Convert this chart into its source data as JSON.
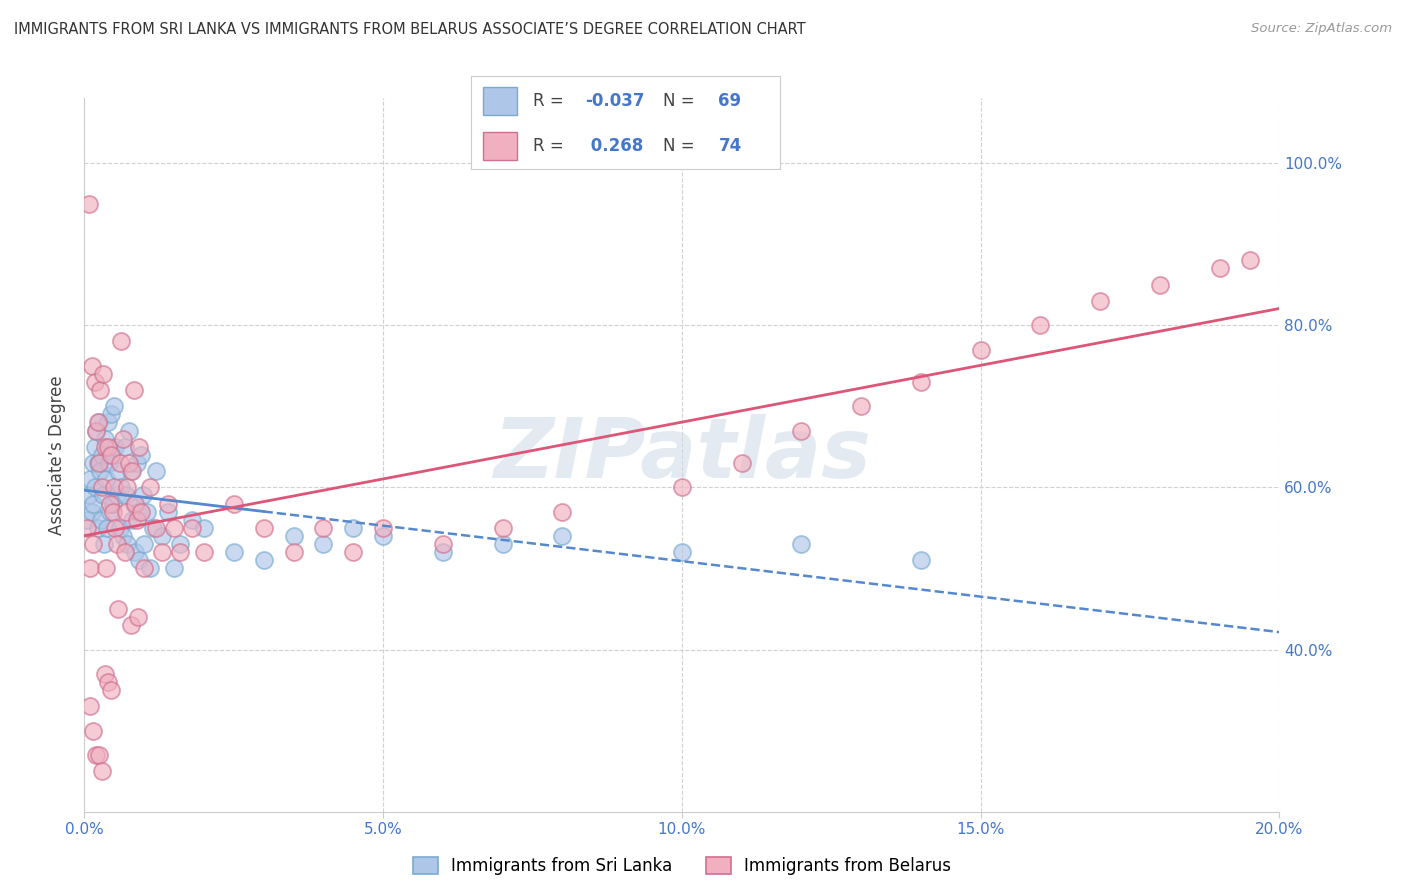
{
  "title": "IMMIGRANTS FROM SRI LANKA VS IMMIGRANTS FROM BELARUS ASSOCIATE’S DEGREE CORRELATION CHART",
  "source": "Source: ZipAtlas.com",
  "ylabel": "Associate’s Degree",
  "x_tick_labels": [
    "0.0%",
    "5.0%",
    "10.0%",
    "15.0%",
    "20.0%"
  ],
  "x_tick_values": [
    0.0,
    5.0,
    10.0,
    15.0,
    20.0
  ],
  "y_tick_labels_right": [
    "100.0%",
    "80.0%",
    "60.0%",
    "40.0%"
  ],
  "y_tick_values": [
    100.0,
    80.0,
    60.0,
    40.0
  ],
  "xlim": [
    0,
    20
  ],
  "ylim": [
    20,
    108
  ],
  "color_sl_fill": "#aec6e8",
  "color_sl_edge": "#7aaad0",
  "color_bel_fill": "#f0b0c0",
  "color_bel_edge": "#d07090",
  "color_sl_line": "#5588cc",
  "color_bel_line": "#dd5577",
  "text_blue": "#4477cc",
  "text_dark": "#444444",
  "grid_color": "#cccccc",
  "watermark": "ZIPatlas",
  "r_sl_str": "-0.037",
  "n_sl_str": "69",
  "r_bel_str": "0.268",
  "n_bel_str": "74",
  "legend_bottom_sl": "Immigrants from Sri Lanka",
  "legend_bottom_bel": "Immigrants from Belarus",
  "sl_x": [
    0.05,
    0.08,
    0.1,
    0.12,
    0.14,
    0.15,
    0.17,
    0.18,
    0.2,
    0.22,
    0.23,
    0.25,
    0.27,
    0.28,
    0.3,
    0.32,
    0.33,
    0.35,
    0.37,
    0.38,
    0.4,
    0.42,
    0.43,
    0.45,
    0.47,
    0.48,
    0.5,
    0.52,
    0.55,
    0.57,
    0.6,
    0.62,
    0.65,
    0.68,
    0.7,
    0.72,
    0.75,
    0.78,
    0.8,
    0.83,
    0.85,
    0.88,
    0.9,
    0.92,
    0.95,
    0.98,
    1.0,
    1.05,
    1.1,
    1.15,
    1.2,
    1.3,
    1.4,
    1.5,
    1.6,
    1.8,
    2.0,
    2.5,
    3.0,
    3.5,
    4.0,
    4.5,
    5.0,
    6.0,
    7.0,
    8.0,
    10.0,
    12.0,
    14.0
  ],
  "sl_y": [
    56,
    59,
    61,
    57,
    63,
    58,
    65,
    60,
    67,
    63,
    55,
    68,
    62,
    56,
    64,
    59,
    53,
    66,
    61,
    55,
    68,
    63,
    57,
    69,
    64,
    58,
    70,
    65,
    59,
    62,
    55,
    60,
    54,
    65,
    59,
    53,
    67,
    62,
    56,
    58,
    52,
    63,
    57,
    51,
    64,
    59,
    53,
    57,
    50,
    55,
    62,
    54,
    57,
    50,
    53,
    56,
    55,
    52,
    51,
    54,
    53,
    55,
    54,
    52,
    53,
    54,
    52,
    53,
    51
  ],
  "bel_x": [
    0.05,
    0.08,
    0.1,
    0.12,
    0.15,
    0.18,
    0.2,
    0.22,
    0.25,
    0.27,
    0.3,
    0.32,
    0.35,
    0.37,
    0.4,
    0.43,
    0.45,
    0.48,
    0.5,
    0.52,
    0.55,
    0.57,
    0.6,
    0.62,
    0.65,
    0.68,
    0.7,
    0.72,
    0.75,
    0.78,
    0.8,
    0.83,
    0.85,
    0.88,
    0.9,
    0.92,
    0.95,
    1.0,
    1.1,
    1.2,
    1.3,
    1.4,
    1.5,
    1.6,
    1.8,
    2.0,
    2.5,
    3.0,
    3.5,
    4.0,
    4.5,
    5.0,
    6.0,
    7.0,
    8.0,
    10.0,
    11.0,
    12.0,
    13.0,
    14.0,
    15.0,
    16.0,
    17.0,
    18.0,
    19.0,
    19.5,
    0.1,
    0.15,
    0.2,
    0.25,
    0.3,
    0.35,
    0.4,
    0.45
  ],
  "bel_y": [
    55,
    95,
    50,
    75,
    53,
    73,
    67,
    68,
    63,
    72,
    60,
    74,
    65,
    50,
    65,
    58,
    64,
    57,
    60,
    55,
    53,
    45,
    63,
    78,
    66,
    52,
    57,
    60,
    63,
    43,
    62,
    72,
    58,
    56,
    44,
    65,
    57,
    50,
    60,
    55,
    52,
    58,
    55,
    52,
    55,
    52,
    58,
    55,
    52,
    55,
    52,
    55,
    53,
    55,
    57,
    60,
    63,
    67,
    70,
    73,
    77,
    80,
    83,
    85,
    87,
    88,
    33,
    30,
    27,
    27,
    25,
    37,
    36,
    35
  ]
}
